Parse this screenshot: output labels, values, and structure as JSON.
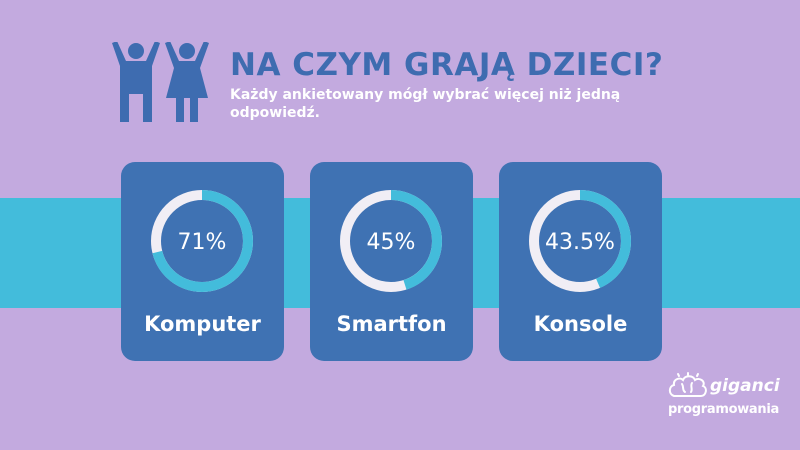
{
  "header": {
    "title": "NA CZYM GRAJĄ DZIECI?",
    "subtitle": "Każdy ankietowany mógł wybrać więcej niż jedną odpowiedź."
  },
  "colors": {
    "background": "#c3aadf",
    "band": "#43bcdb",
    "card": "#3f72b3",
    "title": "#3e6cb0",
    "ring_fill": "#43bcdb",
    "ring_track": "#f1eef5"
  },
  "icons": [
    "boy-cheering-icon",
    "girl-cheering-icon",
    "brain-logo-icon"
  ],
  "chart_data": {
    "type": "donut",
    "title": "NA CZYM GRAJĄ DZIECI?",
    "unit": "%",
    "items": [
      {
        "label": "Komputer",
        "value": 71,
        "value_text": "71%"
      },
      {
        "label": "Smartfon",
        "value": 45,
        "value_text": "45%"
      },
      {
        "label": "Konsole",
        "value": 43.5,
        "value_text": "43.5%"
      }
    ]
  },
  "logo": {
    "line1": "giganci",
    "line2": "programowania"
  }
}
